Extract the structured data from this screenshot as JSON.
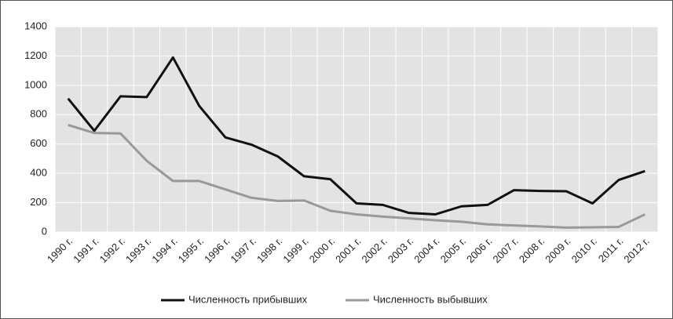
{
  "chart_data": {
    "type": "line",
    "categories": [
      "1990 г.",
      "1991 г.",
      "1992 г.",
      "1993 г.",
      "1994 г.",
      "1995 г.",
      "1996 г.",
      "1997 г.",
      "1998 г.",
      "1999 г.",
      "2000 г.",
      "2001 г.",
      "2002 г.",
      "2003 г.",
      "2004 г.",
      "2005 г.",
      "2006 г.",
      "2007 г.",
      "2008 г.",
      "2009 г.",
      "2010 г.",
      "2011 г.",
      "2012 г."
    ],
    "series": [
      {
        "name": "Численность прибывших",
        "color": "#111111",
        "values": [
          910,
          690,
          925,
          920,
          1190,
          860,
          645,
          595,
          515,
          380,
          360,
          195,
          185,
          130,
          120,
          175,
          185,
          285,
          280,
          278,
          195,
          355,
          415
        ]
      },
      {
        "name": "Численность выбывших",
        "color": "#999999",
        "values": [
          730,
          675,
          672,
          485,
          348,
          348,
          290,
          233,
          212,
          215,
          145,
          120,
          105,
          93,
          80,
          70,
          52,
          45,
          38,
          30,
          32,
          35,
          120
        ]
      }
    ],
    "ylim": [
      0,
      1400
    ],
    "yticks": [
      0,
      200,
      400,
      600,
      800,
      1000,
      1200,
      1400
    ],
    "grid": true,
    "legend": "bottom"
  }
}
